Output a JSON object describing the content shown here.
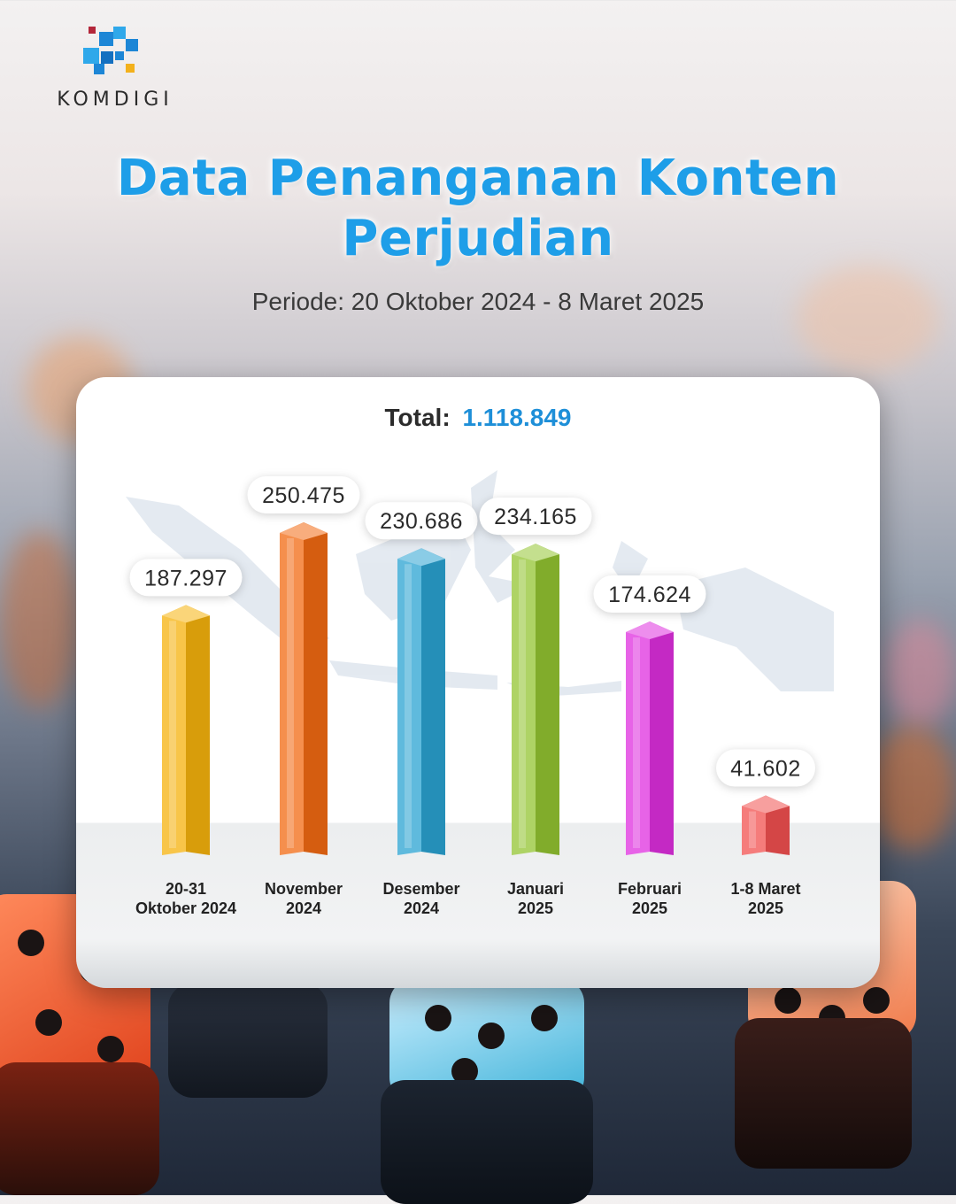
{
  "brand": {
    "name": "KOMDIGI"
  },
  "header": {
    "title": "Data Penanganan Konten Perjudian",
    "subtitle": "Periode: 20 Oktober 2024 - 8 Maret 2025"
  },
  "summary": {
    "total_label": "Total:",
    "total_value": "1.118.849"
  },
  "colors": {
    "title": "#1e9ee8",
    "total_value": "#1e8fd8"
  },
  "chart_data": {
    "type": "bar",
    "categories": [
      [
        "20-31",
        "Oktober 2024"
      ],
      [
        "November",
        "2024"
      ],
      [
        "Desember",
        "2024"
      ],
      [
        "Januari",
        "2025"
      ],
      [
        "Februari",
        "2025"
      ],
      [
        "1-8 Maret",
        "2025"
      ]
    ],
    "values": [
      187297,
      250475,
      230686,
      234165,
      174624,
      41602
    ],
    "value_labels": [
      "187.297",
      "250.475",
      "230.686",
      "234.165",
      "174.624",
      "41.602"
    ],
    "bar_colors": [
      "#f5b20c",
      "#f26a12",
      "#2aa3d1",
      "#93c431",
      "#df2fdf",
      "#f1504f"
    ],
    "ylim": [
      0,
      260000
    ],
    "grid": false,
    "legend": false
  }
}
